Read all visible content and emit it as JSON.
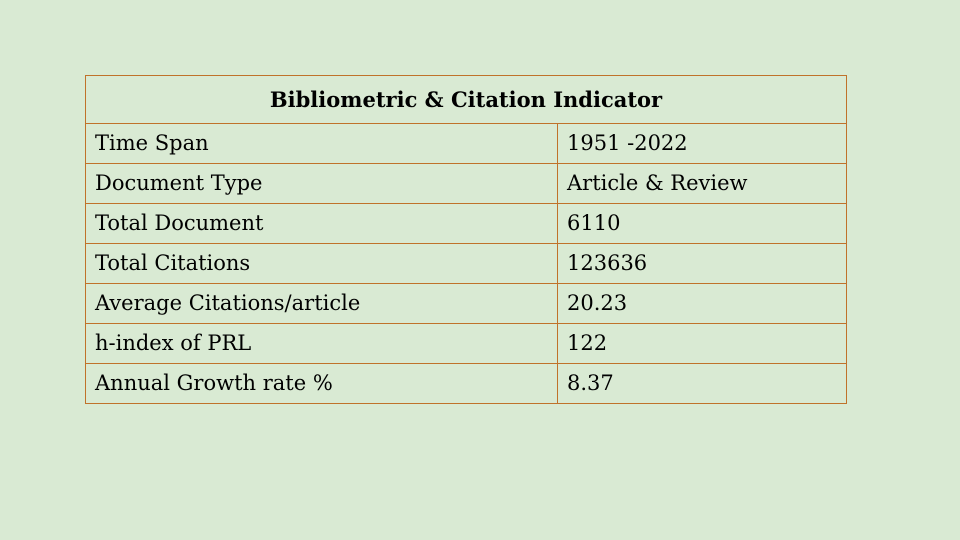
{
  "table": {
    "title": "Bibliometric & Citation Indicator",
    "rows": [
      {
        "label": "Time Span",
        "value": "1951 -2022"
      },
      {
        "label": "Document Type",
        "value": "Article & Review"
      },
      {
        "label": "Total Document",
        "value": "6110"
      },
      {
        "label": "Total Citations",
        "value": "123636"
      },
      {
        "label": "Average Citations/article",
        "value": "20.23"
      },
      {
        "label": "h-index of PRL",
        "value": "122"
      },
      {
        "label": "Annual Growth rate %",
        "value": "8.37"
      }
    ]
  },
  "colors": {
    "background": "#d9ead3",
    "border": "#c0722a",
    "text": "#000000"
  }
}
